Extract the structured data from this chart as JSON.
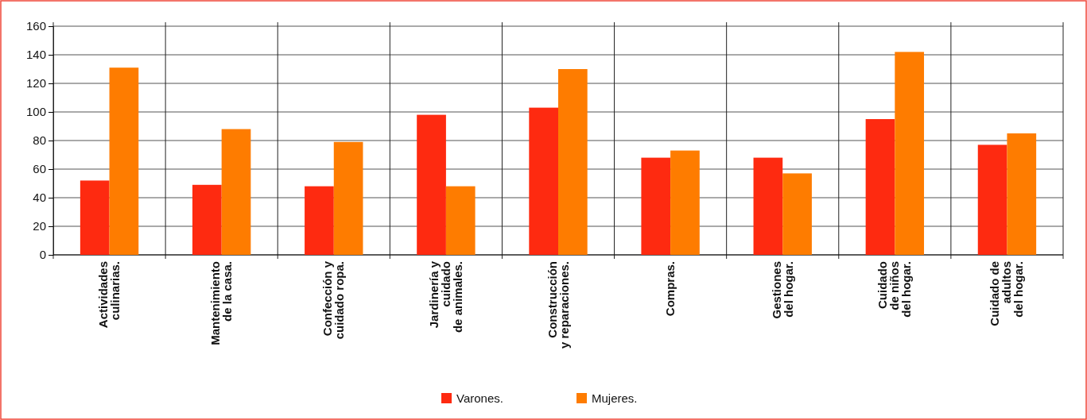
{
  "chart_data": {
    "type": "bar",
    "categories": [
      "Actividades\nculinarias.",
      "Mantenimiento\nde la casa.",
      "Confección y\ncuidado ropa.",
      "Jardinería y\ncuidado\nde animales.",
      "Construcción\ny reparaciones.",
      "Compras.",
      "Gestiones\ndel hogar.",
      "Cuidado\nde niños\ndel hogar.",
      "Cuidado de\nadultos\ndel hogar."
    ],
    "series": [
      {
        "name": "Varones.",
        "color": "#fe2a10",
        "values": [
          52,
          49,
          48,
          98,
          103,
          68,
          68,
          95,
          77
        ]
      },
      {
        "name": "Mujeres.",
        "color": "#fe7c00",
        "values": [
          131,
          88,
          79,
          48,
          130,
          73,
          57,
          142,
          85
        ]
      }
    ],
    "ylim": [
      0,
      160
    ],
    "yticks": [
      0,
      20,
      40,
      60,
      80,
      100,
      120,
      140,
      160
    ],
    "grid": true,
    "legend": "bottom"
  }
}
